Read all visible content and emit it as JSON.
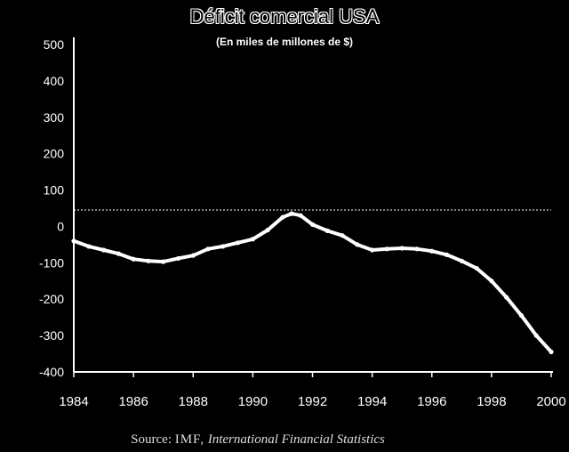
{
  "chart_data": {
    "type": "line",
    "title": "Déficit comercial USA",
    "subtitle": "(En miles de millones de $)",
    "xlabel": "",
    "ylabel": "",
    "xlim": [
      1984,
      2000
    ],
    "ylim": [
      -400,
      500
    ],
    "y_ticks": [
      500,
      400,
      300,
      200,
      100,
      0,
      -100,
      -200,
      -300,
      -400
    ],
    "x_ticks": [
      1984,
      1986,
      1988,
      1990,
      1992,
      1994,
      1996,
      1998,
      2000
    ],
    "reference_line": 45,
    "series": [
      {
        "name": "Déficit comercial",
        "x": [
          1984,
          1984.5,
          1985,
          1985.5,
          1986,
          1986.5,
          1987,
          1987.5,
          1988,
          1988.5,
          1989,
          1989.5,
          1990,
          1990.5,
          1991,
          1991.3,
          1991.6,
          1992,
          1992.5,
          1993,
          1993.5,
          1994,
          1994.5,
          1995,
          1995.5,
          1996,
          1996.5,
          1997,
          1997.5,
          1998,
          1998.5,
          1999,
          1999.5,
          2000
        ],
        "values": [
          -40,
          -55,
          -65,
          -75,
          -90,
          -95,
          -97,
          -88,
          -80,
          -62,
          -55,
          -45,
          -35,
          -10,
          25,
          35,
          30,
          5,
          -12,
          -25,
          -50,
          -65,
          -62,
          -60,
          -62,
          -68,
          -78,
          -95,
          -115,
          -150,
          -195,
          -245,
          -300,
          -345
        ]
      }
    ]
  },
  "source": {
    "prefix": "Source:",
    "org": "IMF,",
    "publication": "International Financial Statistics"
  }
}
